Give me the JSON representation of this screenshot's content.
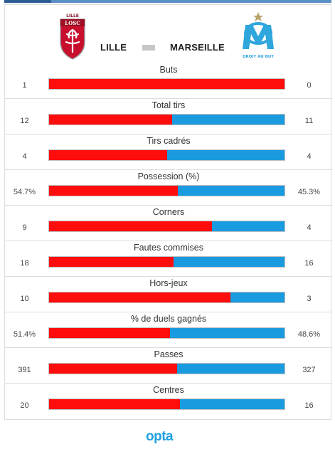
{
  "header": {
    "home_team": "LILLE",
    "away_team": "MARSEILLE",
    "home_crest_text": "LOSC",
    "home_crest_top_text": "LILLE",
    "away_crest_text": "DROIT AU BUT"
  },
  "colors": {
    "home": "#ff0d0d",
    "away": "#1a9be0"
  },
  "chart_data": {
    "type": "bar",
    "orientation": "horizontal-stacked-comparison",
    "series": [
      {
        "name": "LILLE",
        "color": "#ff0d0d"
      },
      {
        "name": "MARSEILLE",
        "color": "#1a9be0"
      }
    ],
    "stats": [
      {
        "label": "Buts",
        "home": 1,
        "away": 0,
        "home_display": "1",
        "away_display": "0"
      },
      {
        "label": "Total tirs",
        "home": 12,
        "away": 11,
        "home_display": "12",
        "away_display": "11"
      },
      {
        "label": "Tirs cadrés",
        "home": 4,
        "away": 4,
        "home_display": "4",
        "away_display": "4"
      },
      {
        "label": "Possession (%)",
        "home": 54.7,
        "away": 45.3,
        "home_display": "54.7%",
        "away_display": "45.3%"
      },
      {
        "label": "Corners",
        "home": 9,
        "away": 4,
        "home_display": "9",
        "away_display": "4"
      },
      {
        "label": "Fautes commises",
        "home": 18,
        "away": 16,
        "home_display": "18",
        "away_display": "16"
      },
      {
        "label": "Hors-jeux",
        "home": 10,
        "away": 3,
        "home_display": "10",
        "away_display": "3"
      },
      {
        "label": "% de duels gagnés",
        "home": 51.4,
        "away": 48.6,
        "home_display": "51.4%",
        "away_display": "48.6%"
      },
      {
        "label": "Passes",
        "home": 391,
        "away": 327,
        "home_display": "391",
        "away_display": "327"
      },
      {
        "label": "Centres",
        "home": 20,
        "away": 16,
        "home_display": "20",
        "away_display": "16"
      }
    ]
  },
  "footer": {
    "brand": "opta"
  }
}
